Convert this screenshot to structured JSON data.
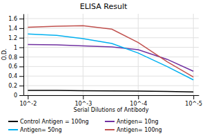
{
  "chart_data": {
    "type": "line",
    "title": "ELISA Result",
    "xlabel": "Serial Dilutions of Antibody",
    "ylabel": "O.D.",
    "log": "x",
    "x": [
      0.01,
      0.003,
      0.001,
      0.0003,
      0.0001,
      3e-05,
      1e-05
    ],
    "series": [
      {
        "name": "Control Antigen = 100ng",
        "color": "#000000",
        "values": [
          0.1,
          0.1,
          0.095,
          0.09,
          0.085,
          0.08,
          0.07
        ]
      },
      {
        "name": "Antigen= 10ng",
        "color": "#7030a0",
        "values": [
          1.06,
          1.05,
          1.03,
          1.01,
          0.95,
          0.75,
          0.5
        ]
      },
      {
        "name": "Antigen= 50ng",
        "color": "#00b0f0",
        "values": [
          1.28,
          1.25,
          1.18,
          1.08,
          0.88,
          0.6,
          0.32
        ]
      },
      {
        "name": "Antigen= 100ng",
        "color": "#c0504d",
        "values": [
          1.42,
          1.44,
          1.45,
          1.38,
          1.1,
          0.7,
          0.38
        ]
      }
    ],
    "xlim": [
      0.012,
      8e-06
    ],
    "xticks": [
      {
        "value": 0.01,
        "label": "10^-2"
      },
      {
        "value": 0.001,
        "label": "10^-3"
      },
      {
        "value": 0.0001,
        "label": "10^-4"
      },
      {
        "value": 1e-05,
        "label": "10^-5"
      }
    ],
    "ylim": [
      0,
      1.7
    ],
    "yticks": [
      0,
      0.2,
      0.4,
      0.6,
      0.8,
      1,
      1.2,
      1.4,
      1.6
    ],
    "grid": true
  }
}
